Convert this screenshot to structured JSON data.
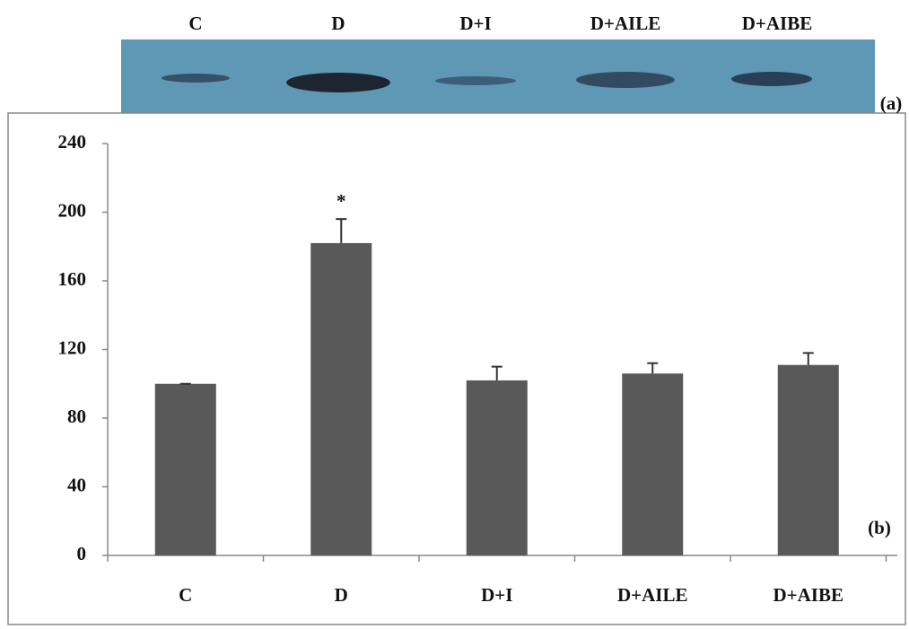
{
  "chart_data": {
    "type": "bar",
    "categories": [
      "C",
      "D",
      "D+I",
      "D+AILE",
      "D+AIBE"
    ],
    "values": [
      100,
      182,
      102,
      106,
      111
    ],
    "errors": [
      0,
      14,
      8,
      6,
      7
    ],
    "color": "#595959",
    "ylim": [
      0,
      240
    ],
    "yticks": [
      0,
      40,
      80,
      120,
      160,
      200,
      240
    ],
    "annotation": "*",
    "panel_a_label": "(a)",
    "panel_b_label": "(b)"
  }
}
